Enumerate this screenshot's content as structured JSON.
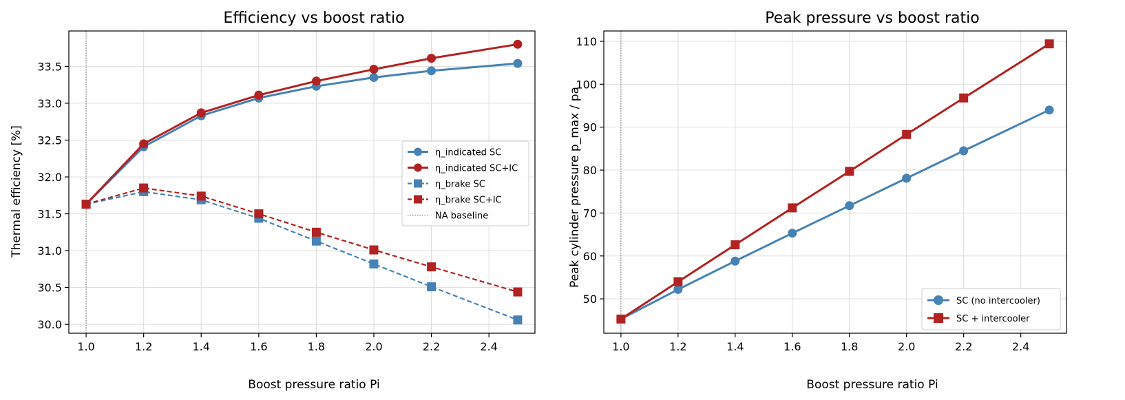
{
  "colors": {
    "blue": "#4682b4",
    "red": "#b22222",
    "baseline": "#808080"
  },
  "chart_data": [
    {
      "type": "line",
      "title": "Efficiency vs boost ratio",
      "xlabel": "Boost pressure ratio Pi",
      "ylabel": "Thermal efficiency [%]",
      "xlim": [
        0.94,
        2.56
      ],
      "ylim": [
        29.88,
        33.98
      ],
      "xticks": [
        "1.0",
        "1.2",
        "1.4",
        "1.6",
        "1.8",
        "2.0",
        "2.2",
        "2.4"
      ],
      "yticks": [
        "30.0",
        "30.5",
        "31.0",
        "31.5",
        "32.0",
        "32.5",
        "33.0",
        "33.5"
      ],
      "grid": true,
      "legend_position": "center-right",
      "x": [
        1.0,
        1.2,
        1.4,
        1.6,
        1.8,
        2.0,
        2.2,
        2.5
      ],
      "series": [
        {
          "name": "η_indicated  SC",
          "color": "#4682b4",
          "dash": "solid",
          "marker": "circle",
          "values": [
            31.63,
            32.41,
            32.83,
            33.07,
            33.23,
            33.35,
            33.44,
            33.54
          ]
        },
        {
          "name": "η_indicated  SC+IC",
          "color": "#b22222",
          "dash": "solid",
          "marker": "circle",
          "values": [
            31.63,
            32.45,
            32.87,
            33.11,
            33.3,
            33.46,
            33.61,
            33.8
          ]
        },
        {
          "name": "η_brake  SC",
          "color": "#4682b4",
          "dash": "dashed",
          "marker": "square",
          "values": [
            31.63,
            31.8,
            31.69,
            31.44,
            31.13,
            30.82,
            30.51,
            30.06
          ]
        },
        {
          "name": "η_brake  SC+IC",
          "color": "#b22222",
          "dash": "dashed",
          "marker": "square",
          "values": [
            31.63,
            31.85,
            31.74,
            31.5,
            31.25,
            31.01,
            30.78,
            30.44
          ]
        }
      ],
      "baseline": {
        "name": "NA baseline",
        "x": 1.0
      }
    },
    {
      "type": "line",
      "title": "Peak pressure vs boost ratio",
      "xlabel": "Boost pressure ratio Pi",
      "ylabel": "Peak cylinder pressure p_max / pa",
      "xlim": [
        0.94,
        2.56
      ],
      "ylim": [
        42.0,
        112.4
      ],
      "xticks": [
        "1.0",
        "1.2",
        "1.4",
        "1.6",
        "1.8",
        "2.0",
        "2.2",
        "2.4"
      ],
      "yticks": [
        "50",
        "60",
        "70",
        "80",
        "90",
        "100",
        "110"
      ],
      "grid": true,
      "legend_position": "bottom-right",
      "x": [
        1.0,
        1.2,
        1.4,
        1.6,
        1.8,
        2.0,
        2.2,
        2.5
      ],
      "series": [
        {
          "name": "SC (no intercooler)",
          "color": "#4682b4",
          "dash": "solid",
          "marker": "circle",
          "values": [
            45.3,
            52.2,
            58.8,
            65.3,
            71.7,
            78.1,
            84.5,
            94.0
          ]
        },
        {
          "name": "SC + intercooler",
          "color": "#b22222",
          "dash": "solid",
          "marker": "square",
          "values": [
            45.3,
            54.0,
            62.6,
            71.2,
            79.7,
            88.3,
            96.8,
            109.4
          ]
        }
      ],
      "baseline": {
        "x": 1.0
      }
    }
  ]
}
